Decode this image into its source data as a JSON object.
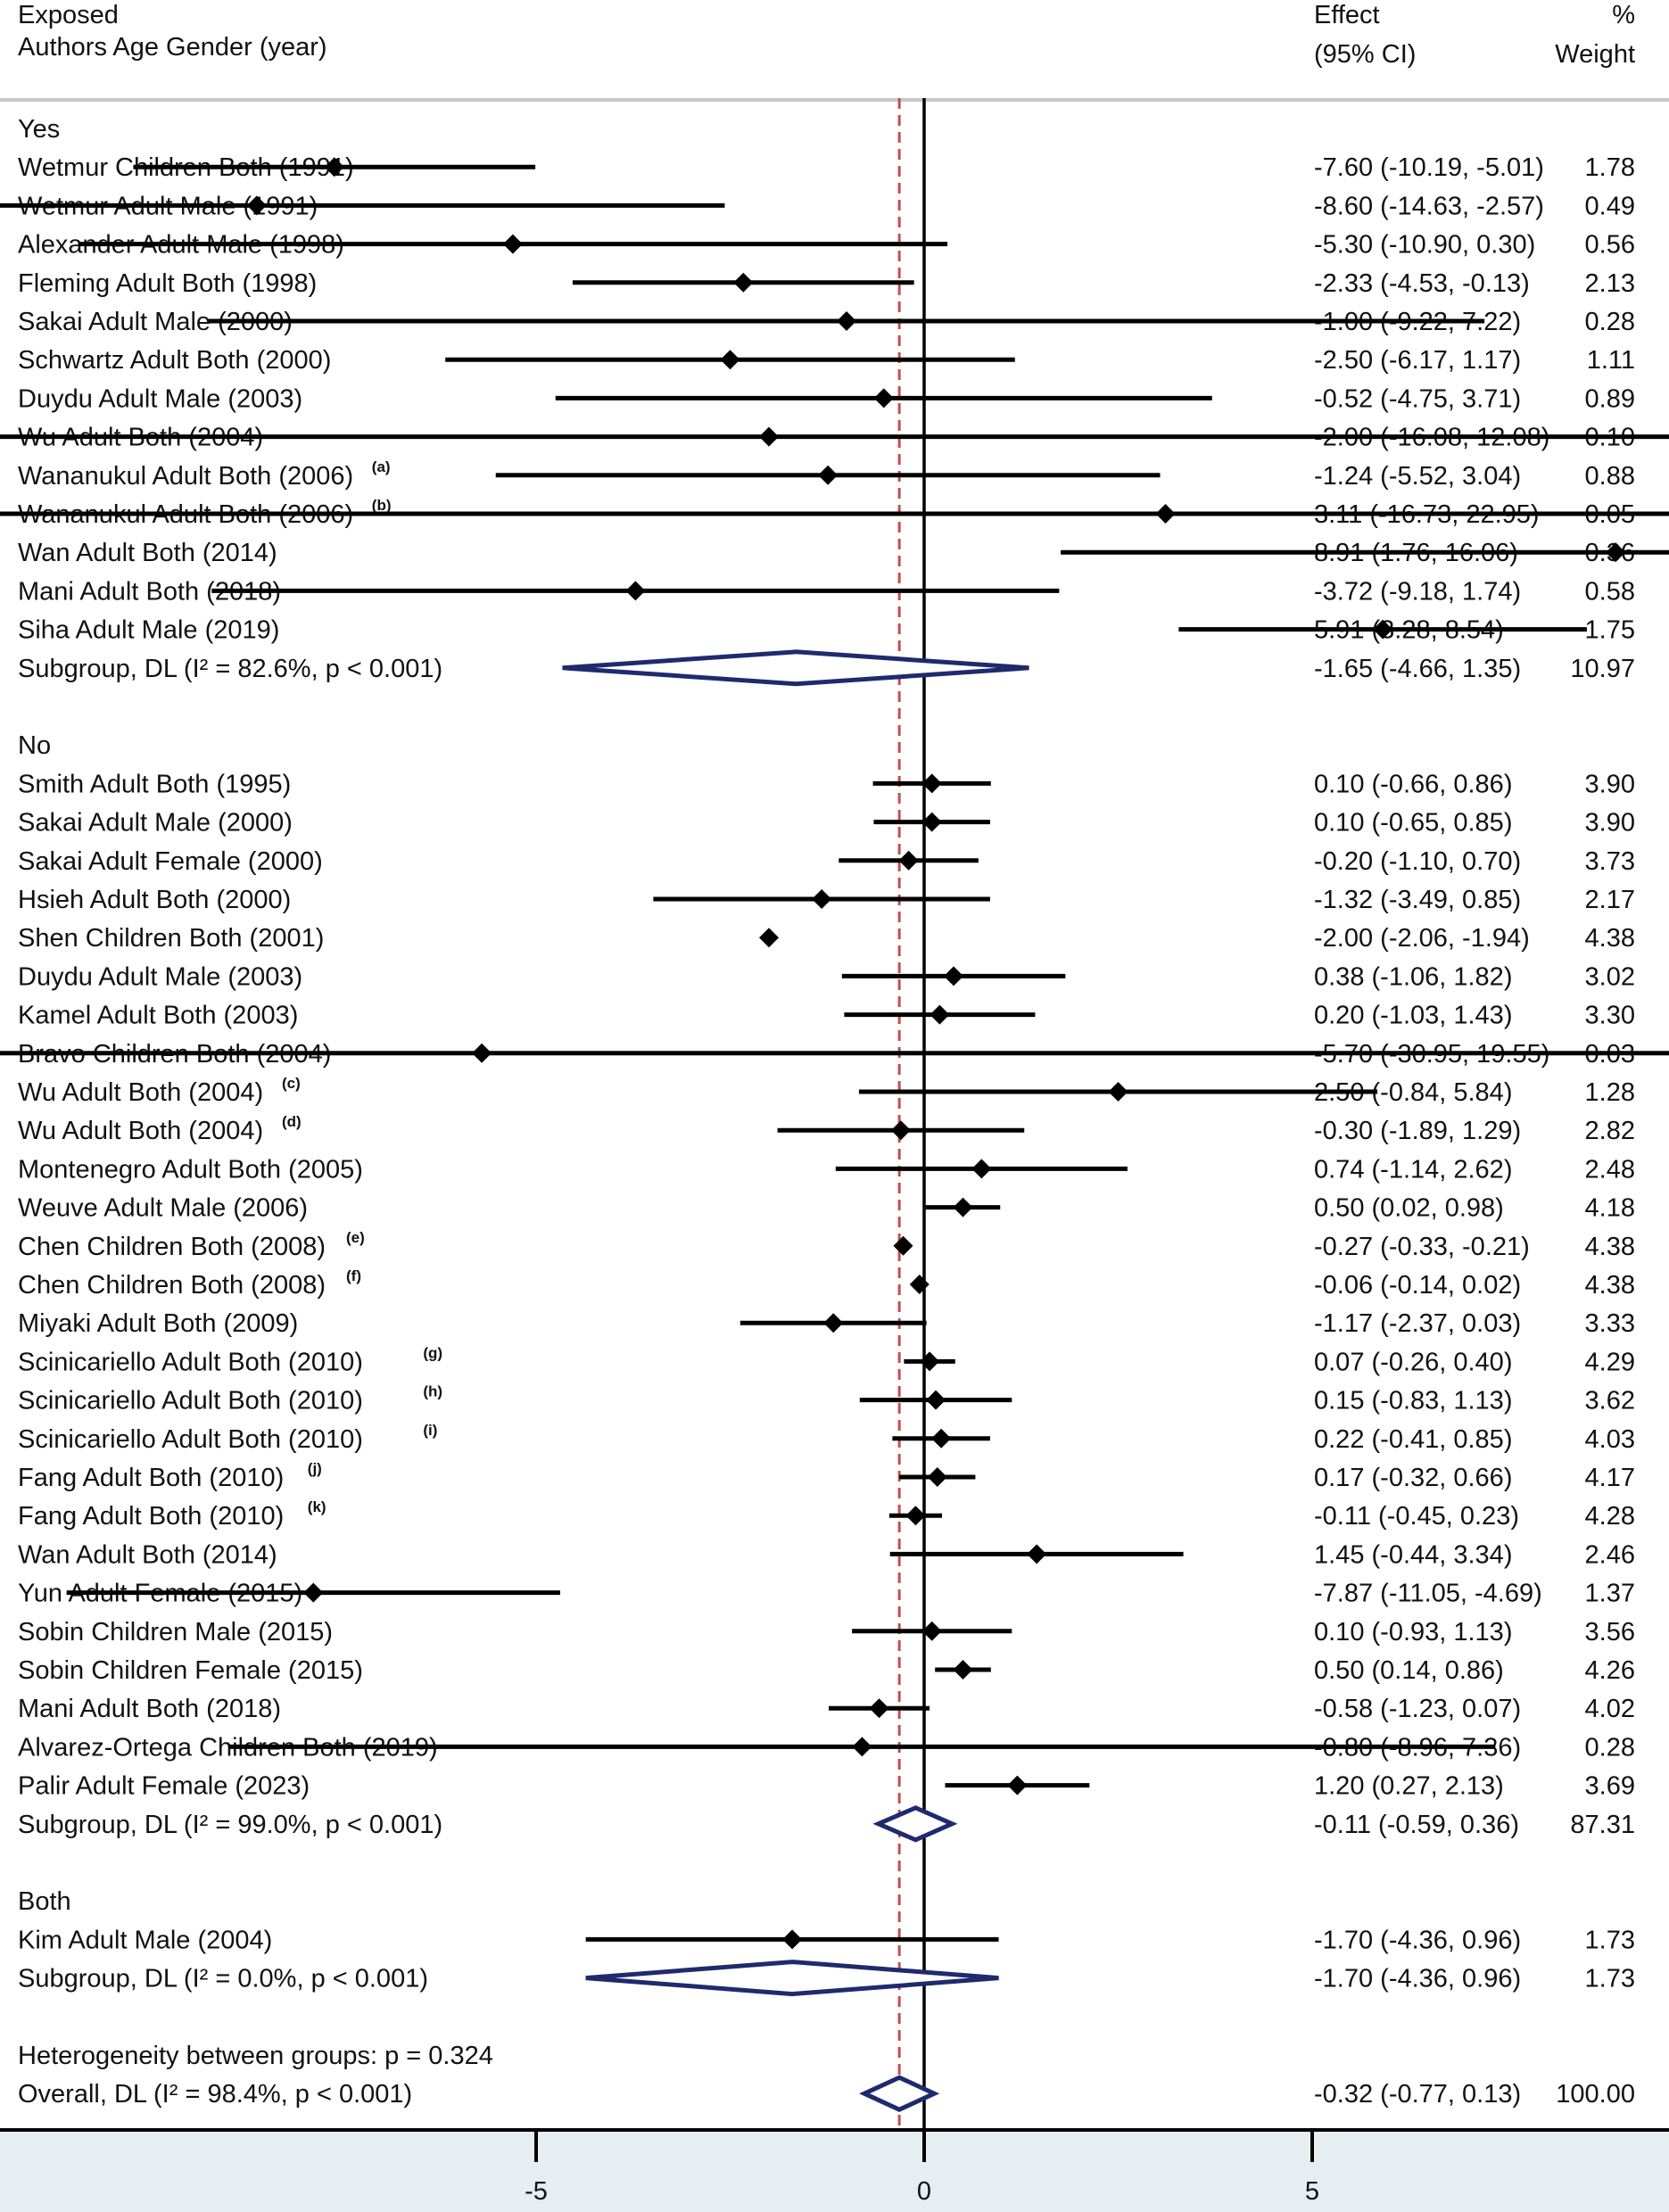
{
  "header": {
    "col1_line1": "Exposed",
    "col1_line2": "Authors Age Gender (year)",
    "effect_line1": "Effect",
    "effect_line2": "(95% CI)",
    "weight_line1": "%",
    "weight_line2": "Weight"
  },
  "colors": {
    "point": "#000000",
    "ci_line": "#000000",
    "diamond": "#1f2a6e",
    "overall_line": "#c0504d",
    "axis_band": "#e6eef2",
    "header_rule": "#c8c8c8"
  },
  "chart_data": {
    "type": "forest",
    "x_ticks": [
      -5,
      0,
      5
    ],
    "xlim": [
      -17.8,
      23.0
    ],
    "null_line": 0,
    "overall_line": -0.32,
    "rows": [
      {
        "kind": "group",
        "label": "Yes"
      },
      {
        "kind": "study",
        "label": "Wetmur Children Both (1991)",
        "sup": "",
        "est": -7.6,
        "lo": -10.19,
        "hi": -5.01,
        "ci_text": "-7.60 (-10.19, -5.01)",
        "weight": "1.78"
      },
      {
        "kind": "study",
        "label": "Wetmur Adult Male (1991)",
        "sup": "",
        "est": -8.6,
        "lo": -14.63,
        "hi": -2.57,
        "ci_text": "-8.60 (-14.63, -2.57)",
        "weight": "0.49"
      },
      {
        "kind": "study",
        "label": "Alexander Adult Male (1998)",
        "sup": "",
        "est": -5.3,
        "lo": -10.9,
        "hi": 0.3,
        "ci_text": "-5.30 (-10.90, 0.30)",
        "weight": "0.56"
      },
      {
        "kind": "study",
        "label": "Fleming Adult Both (1998)",
        "sup": "",
        "est": -2.33,
        "lo": -4.53,
        "hi": -0.13,
        "ci_text": "-2.33 (-4.53, -0.13)",
        "weight": "2.13"
      },
      {
        "kind": "study",
        "label": "Sakai Adult Male (2000)",
        "sup": "",
        "est": -1.0,
        "lo": -9.22,
        "hi": 7.22,
        "ci_text": "-1.00 (-9.22, 7.22)",
        "weight": "0.28"
      },
      {
        "kind": "study",
        "label": "Schwartz Adult Both (2000)",
        "sup": "",
        "est": -2.5,
        "lo": -6.17,
        "hi": 1.17,
        "ci_text": "-2.50 (-6.17, 1.17)",
        "weight": "1.11"
      },
      {
        "kind": "study",
        "label": "Duydu Adult Male (2003)",
        "sup": "",
        "est": -0.52,
        "lo": -4.75,
        "hi": 3.71,
        "ci_text": "-0.52 (-4.75, 3.71)",
        "weight": "0.89"
      },
      {
        "kind": "study",
        "label": "Wu Adult Both (2004)",
        "sup": "",
        "est": -2.0,
        "lo": -16.08,
        "hi": 12.08,
        "ci_text": "-2.00 (-16.08, 12.08)",
        "weight": "0.10"
      },
      {
        "kind": "study",
        "label": "Wananukul Adult Both (2006)",
        "sup": "(a)",
        "est": -1.24,
        "lo": -5.52,
        "hi": 3.04,
        "ci_text": "-1.24 (-5.52, 3.04)",
        "weight": "0.88"
      },
      {
        "kind": "study",
        "label": "Wananukul Adult Both (2006)",
        "sup": "(b)",
        "est": 3.11,
        "lo": -16.73,
        "hi": 22.95,
        "ci_text": "3.11 (-16.73, 22.95)",
        "weight": "0.05"
      },
      {
        "kind": "study",
        "label": "Wan Adult Both (2014)",
        "sup": "",
        "est": 8.91,
        "lo": 1.76,
        "hi": 16.06,
        "ci_text": "8.91 (1.76, 16.06)",
        "weight": "0.36"
      },
      {
        "kind": "study",
        "label": "Mani Adult Both (2018)",
        "sup": "",
        "est": -3.72,
        "lo": -9.18,
        "hi": 1.74,
        "ci_text": "-3.72 (-9.18, 1.74)",
        "weight": "0.58"
      },
      {
        "kind": "study",
        "label": "Siha Adult Male (2019)",
        "sup": "",
        "est": 5.91,
        "lo": 3.28,
        "hi": 8.54,
        "ci_text": "5.91 (3.28, 8.54)",
        "weight": "1.75"
      },
      {
        "kind": "subgroup",
        "label": "Subgroup, DL (I² = 82.6%, p < 0.001)",
        "est": -1.65,
        "lo": -4.66,
        "hi": 1.35,
        "ci_text": "-1.65 (-4.66, 1.35)",
        "weight": "10.97"
      },
      {
        "kind": "blank"
      },
      {
        "kind": "group",
        "label": "No"
      },
      {
        "kind": "study",
        "label": "Smith Adult Both (1995)",
        "sup": "",
        "est": 0.1,
        "lo": -0.66,
        "hi": 0.86,
        "ci_text": "0.10 (-0.66, 0.86)",
        "weight": "3.90"
      },
      {
        "kind": "study",
        "label": "Sakai Adult Male (2000)",
        "sup": "",
        "est": 0.1,
        "lo": -0.65,
        "hi": 0.85,
        "ci_text": "0.10 (-0.65, 0.85)",
        "weight": "3.90"
      },
      {
        "kind": "study",
        "label": "Sakai Adult Female (2000)",
        "sup": "",
        "est": -0.2,
        "lo": -1.1,
        "hi": 0.7,
        "ci_text": "-0.20 (-1.10, 0.70)",
        "weight": "3.73"
      },
      {
        "kind": "study",
        "label": "Hsieh Adult Both (2000)",
        "sup": "",
        "est": -1.32,
        "lo": -3.49,
        "hi": 0.85,
        "ci_text": "-1.32 (-3.49, 0.85)",
        "weight": "2.17"
      },
      {
        "kind": "study",
        "label": "Shen Children Both (2001)",
        "sup": "",
        "est": -2.0,
        "lo": -2.06,
        "hi": -1.94,
        "ci_text": "-2.00 (-2.06, -1.94)",
        "weight": "4.38"
      },
      {
        "kind": "study",
        "label": "Duydu Adult Male (2003)",
        "sup": "",
        "est": 0.38,
        "lo": -1.06,
        "hi": 1.82,
        "ci_text": "0.38 (-1.06, 1.82)",
        "weight": "3.02"
      },
      {
        "kind": "study",
        "label": "Kamel Adult Both (2003)",
        "sup": "",
        "est": 0.2,
        "lo": -1.03,
        "hi": 1.43,
        "ci_text": "0.20 (-1.03, 1.43)",
        "weight": "3.30"
      },
      {
        "kind": "study",
        "label": "Bravo Children Both (2004)",
        "sup": "",
        "est": -5.7,
        "lo": -30.95,
        "hi": 19.55,
        "ci_text": "-5.70 (-30.95, 19.55)",
        "weight": "0.03"
      },
      {
        "kind": "study",
        "label": "Wu Adult Both (2004)",
        "sup": "(c)",
        "est": 2.5,
        "lo": -0.84,
        "hi": 5.84,
        "ci_text": "2.50 (-0.84, 5.84)",
        "weight": "1.28"
      },
      {
        "kind": "study",
        "label": "Wu Adult Both (2004)",
        "sup": "(d)",
        "est": -0.3,
        "lo": -1.89,
        "hi": 1.29,
        "ci_text": "-0.30 (-1.89, 1.29)",
        "weight": "2.82"
      },
      {
        "kind": "study",
        "label": "Montenegro Adult Both (2005)",
        "sup": "",
        "est": 0.74,
        "lo": -1.14,
        "hi": 2.62,
        "ci_text": "0.74 (-1.14, 2.62)",
        "weight": "2.48"
      },
      {
        "kind": "study",
        "label": "Weuve Adult Male (2006)",
        "sup": "",
        "est": 0.5,
        "lo": 0.02,
        "hi": 0.98,
        "ci_text": "0.50 (0.02, 0.98)",
        "weight": "4.18"
      },
      {
        "kind": "study",
        "label": "Chen Children Both (2008)",
        "sup": "(e)",
        "est": -0.27,
        "lo": -0.33,
        "hi": -0.21,
        "ci_text": "-0.27 (-0.33, -0.21)",
        "weight": "4.38"
      },
      {
        "kind": "study",
        "label": "Chen Children Both (2008)",
        "sup": "(f)",
        "est": -0.06,
        "lo": -0.14,
        "hi": 0.02,
        "ci_text": "-0.06 (-0.14, 0.02)",
        "weight": "4.38"
      },
      {
        "kind": "study",
        "label": "Miyaki Adult Both (2009)",
        "sup": "",
        "est": -1.17,
        "lo": -2.37,
        "hi": 0.03,
        "ci_text": "-1.17 (-2.37, 0.03)",
        "weight": "3.33"
      },
      {
        "kind": "study",
        "label": "Scinicariello Adult Both (2010)",
        "sup": "(g)",
        "est": 0.07,
        "lo": -0.26,
        "hi": 0.4,
        "ci_text": "0.07 (-0.26, 0.40)",
        "weight": "4.29"
      },
      {
        "kind": "study",
        "label": "Scinicariello Adult Both (2010)",
        "sup": "(h)",
        "est": 0.15,
        "lo": -0.83,
        "hi": 1.13,
        "ci_text": "0.15 (-0.83, 1.13)",
        "weight": "3.62"
      },
      {
        "kind": "study",
        "label": "Scinicariello Adult Both (2010)",
        "sup": "(i)",
        "est": 0.22,
        "lo": -0.41,
        "hi": 0.85,
        "ci_text": "0.22 (-0.41, 0.85)",
        "weight": "4.03"
      },
      {
        "kind": "study",
        "label": "Fang Adult Both (2010)",
        "sup": "(j)",
        "est": 0.17,
        "lo": -0.32,
        "hi": 0.66,
        "ci_text": "0.17 (-0.32, 0.66)",
        "weight": "4.17"
      },
      {
        "kind": "study",
        "label": "Fang Adult Both (2010)",
        "sup": "(k)",
        "est": -0.11,
        "lo": -0.45,
        "hi": 0.23,
        "ci_text": "-0.11 (-0.45, 0.23)",
        "weight": "4.28"
      },
      {
        "kind": "study",
        "label": "Wan Adult Both (2014)",
        "sup": "",
        "est": 1.45,
        "lo": -0.44,
        "hi": 3.34,
        "ci_text": "1.45 (-0.44, 3.34)",
        "weight": "2.46"
      },
      {
        "kind": "study",
        "label": "Yun Adult Female (2015)",
        "sup": "",
        "est": -7.87,
        "lo": -11.05,
        "hi": -4.69,
        "ci_text": "-7.87 (-11.05, -4.69)",
        "weight": "1.37"
      },
      {
        "kind": "study",
        "label": "Sobin Children Male (2015)",
        "sup": "",
        "est": 0.1,
        "lo": -0.93,
        "hi": 1.13,
        "ci_text": "0.10 (-0.93, 1.13)",
        "weight": "3.56"
      },
      {
        "kind": "study",
        "label": "Sobin Children Female (2015)",
        "sup": "",
        "est": 0.5,
        "lo": 0.14,
        "hi": 0.86,
        "ci_text": "0.50 (0.14, 0.86)",
        "weight": "4.26"
      },
      {
        "kind": "study",
        "label": "Mani Adult Both (2018)",
        "sup": "",
        "est": -0.58,
        "lo": -1.23,
        "hi": 0.07,
        "ci_text": "-0.58 (-1.23, 0.07)",
        "weight": "4.02"
      },
      {
        "kind": "study",
        "label": "Alvarez-Ortega Children Both (2019)",
        "sup": "",
        "est": -0.8,
        "lo": -8.96,
        "hi": 7.36,
        "ci_text": "-0.80 (-8.96, 7.36)",
        "weight": "0.28"
      },
      {
        "kind": "study",
        "label": "Palir Adult Female (2023)",
        "sup": "",
        "est": 1.2,
        "lo": 0.27,
        "hi": 2.13,
        "ci_text": "1.20 (0.27, 2.13)",
        "weight": "3.69"
      },
      {
        "kind": "subgroup",
        "label": "Subgroup, DL (I² = 99.0%, p < 0.001)",
        "est": -0.11,
        "lo": -0.59,
        "hi": 0.36,
        "ci_text": "-0.11 (-0.59, 0.36)",
        "weight": "87.31"
      },
      {
        "kind": "blank"
      },
      {
        "kind": "group",
        "label": "Both"
      },
      {
        "kind": "study",
        "label": "Kim Adult Male (2004)",
        "sup": "",
        "est": -1.7,
        "lo": -4.36,
        "hi": 0.96,
        "ci_text": "-1.70 (-4.36, 0.96)",
        "weight": "1.73"
      },
      {
        "kind": "subgroup",
        "label": "Subgroup, DL (I² = 0.0%, p < 0.001)",
        "est": -1.7,
        "lo": -4.36,
        "hi": 0.96,
        "ci_text": "-1.70 (-4.36, 0.96)",
        "weight": "1.73"
      },
      {
        "kind": "blank"
      },
      {
        "kind": "note",
        "label": "Heterogeneity between groups: p = 0.324"
      },
      {
        "kind": "overall",
        "label": "Overall, DL (I² = 98.4%, p < 0.001)",
        "est": -0.32,
        "lo": -0.77,
        "hi": 0.13,
        "ci_text": "-0.32 (-0.77, 0.13)",
        "weight": "100.00"
      }
    ]
  }
}
